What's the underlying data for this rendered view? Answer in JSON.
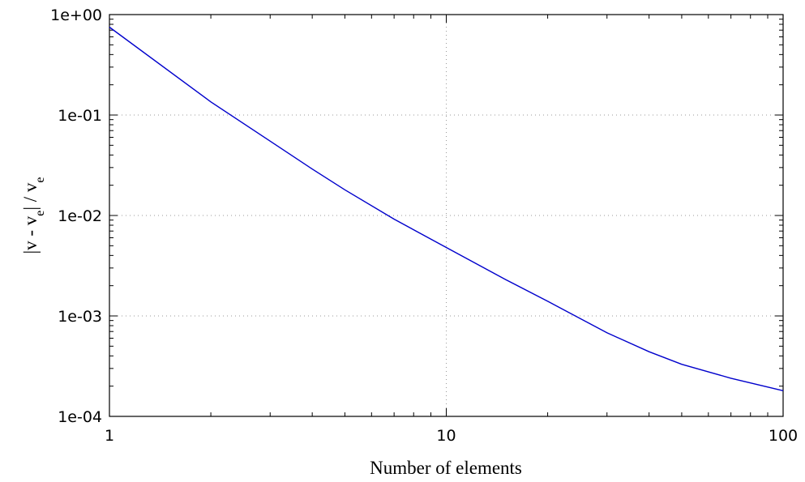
{
  "chart_data": {
    "type": "line",
    "xscale": "log",
    "yscale": "log",
    "xlabel": "Number of elements",
    "ylabel": {
      "main": "|v - v",
      "sub1": "e",
      "mid": "| / v",
      "sub2": "e"
    },
    "xlim": [
      1,
      100
    ],
    "ylim": [
      0.0001,
      1
    ],
    "x_ticks": [
      {
        "value": 1,
        "label": "1"
      },
      {
        "value": 10,
        "label": "10"
      },
      {
        "value": 100,
        "label": "100"
      }
    ],
    "y_ticks": [
      {
        "value": 1,
        "label": "1e+00"
      },
      {
        "value": 0.1,
        "label": "1e-01"
      },
      {
        "value": 0.01,
        "label": "1e-02"
      },
      {
        "value": 0.001,
        "label": "1e-03"
      },
      {
        "value": 0.0001,
        "label": "1e-04"
      }
    ],
    "grid": true,
    "series": [
      {
        "color": "#0000cc",
        "x": [
          1,
          2,
          3,
          4,
          5,
          7,
          10,
          15,
          20,
          30,
          40,
          50,
          70,
          100
        ],
        "y": [
          0.75,
          0.135,
          0.055,
          0.029,
          0.018,
          0.0092,
          0.0048,
          0.0023,
          0.0014,
          0.00068,
          0.00044,
          0.00033,
          0.00024,
          0.00018
        ]
      }
    ]
  }
}
